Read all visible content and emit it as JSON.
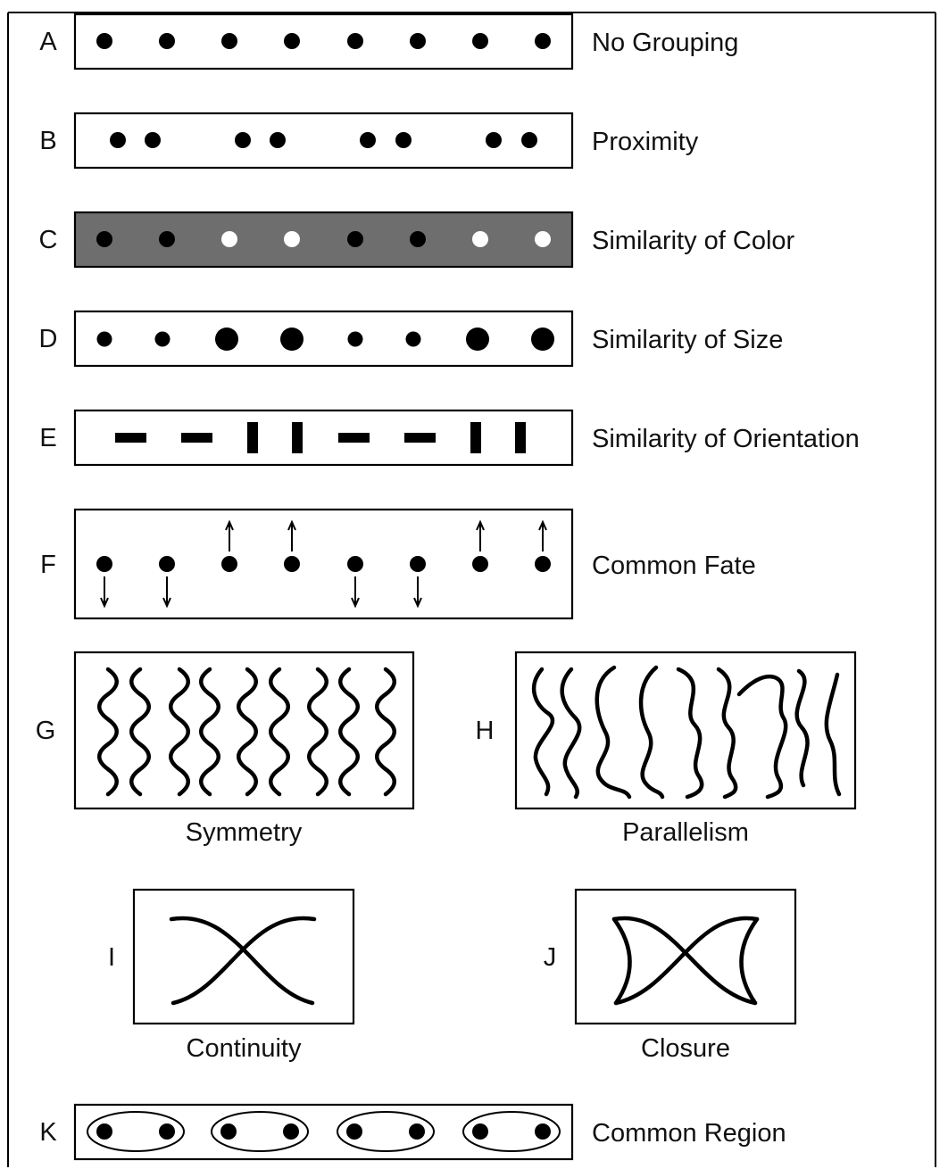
{
  "rows": [
    {
      "letter": "A",
      "caption": "No Grouping"
    },
    {
      "letter": "B",
      "caption": "Proximity"
    },
    {
      "letter": "C",
      "caption": "Similarity of Color"
    },
    {
      "letter": "D",
      "caption": "Similarity of Size"
    },
    {
      "letter": "E",
      "caption": "Similarity of Orientation"
    },
    {
      "letter": "F",
      "caption": "Common Fate"
    },
    {
      "letter": "K",
      "caption": "Common Region"
    }
  ],
  "pairs": [
    {
      "letter": "G",
      "caption": "Symmetry"
    },
    {
      "letter": "H",
      "caption": "Parallelism"
    },
    {
      "letter": "I",
      "caption": "Continuity"
    },
    {
      "letter": "J",
      "caption": "Closure"
    }
  ],
  "colors": {
    "ink": "#000000",
    "panel_fill": "#ffffff",
    "shaded_panel": "#6e6e6e",
    "light_dot": "#ffffff"
  },
  "motion": {
    "common_fate_directions": [
      "down",
      "down",
      "up",
      "up",
      "down",
      "down",
      "up",
      "up"
    ]
  }
}
